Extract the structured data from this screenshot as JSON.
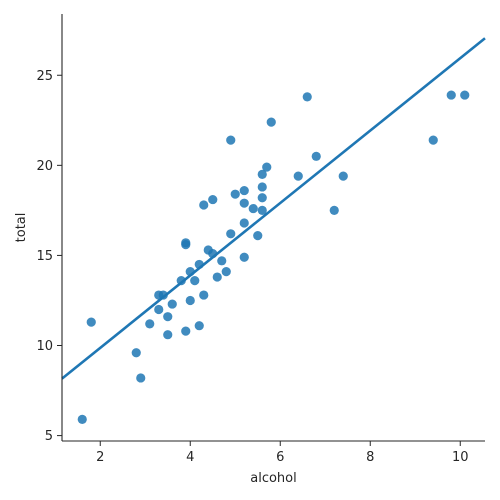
{
  "chart_data": {
    "type": "scatter",
    "title": "",
    "xlabel": "alcohol",
    "ylabel": "total",
    "xlim": [
      1.15,
      10.55
    ],
    "ylim": [
      4.7,
      28.4
    ],
    "xticks": [
      2,
      4,
      6,
      8,
      10
    ],
    "yticks": [
      5,
      10,
      15,
      20,
      25
    ],
    "grid": false,
    "legend": "none",
    "colors": {
      "points": "#1f77b4",
      "line": "#1f77b4"
    },
    "regression": {
      "slope": 2.01,
      "intercept": 5.85
    },
    "points": [
      [
        1.6,
        5.9
      ],
      [
        1.8,
        11.3
      ],
      [
        2.8,
        9.6
      ],
      [
        2.9,
        8.2
      ],
      [
        3.1,
        11.2
      ],
      [
        3.3,
        12.8
      ],
      [
        3.3,
        12.0
      ],
      [
        3.4,
        12.8
      ],
      [
        3.5,
        11.6
      ],
      [
        3.5,
        10.6
      ],
      [
        3.6,
        12.3
      ],
      [
        3.8,
        13.6
      ],
      [
        3.9,
        15.6
      ],
      [
        3.9,
        15.7
      ],
      [
        3.9,
        10.8
      ],
      [
        4.0,
        14.1
      ],
      [
        4.0,
        12.5
      ],
      [
        4.1,
        13.6
      ],
      [
        4.2,
        14.5
      ],
      [
        4.2,
        11.1
      ],
      [
        4.3,
        17.8
      ],
      [
        4.3,
        12.8
      ],
      [
        4.4,
        15.3
      ],
      [
        4.5,
        18.1
      ],
      [
        4.5,
        15.1
      ],
      [
        4.6,
        13.8
      ],
      [
        4.7,
        14.7
      ],
      [
        4.8,
        14.1
      ],
      [
        4.9,
        16.2
      ],
      [
        4.9,
        21.4
      ],
      [
        5.0,
        18.4
      ],
      [
        5.2,
        18.6
      ],
      [
        5.2,
        17.9
      ],
      [
        5.2,
        16.8
      ],
      [
        5.2,
        14.9
      ],
      [
        5.4,
        17.6
      ],
      [
        5.5,
        16.1
      ],
      [
        5.6,
        17.5
      ],
      [
        5.6,
        19.5
      ],
      [
        5.6,
        18.8
      ],
      [
        5.6,
        18.2
      ],
      [
        5.7,
        19.9
      ],
      [
        5.8,
        22.4
      ],
      [
        6.4,
        19.4
      ],
      [
        6.6,
        23.8
      ],
      [
        6.8,
        20.5
      ],
      [
        7.2,
        17.5
      ],
      [
        7.4,
        19.4
      ],
      [
        9.4,
        21.4
      ],
      [
        9.8,
        23.9
      ],
      [
        10.1,
        23.9
      ]
    ]
  }
}
